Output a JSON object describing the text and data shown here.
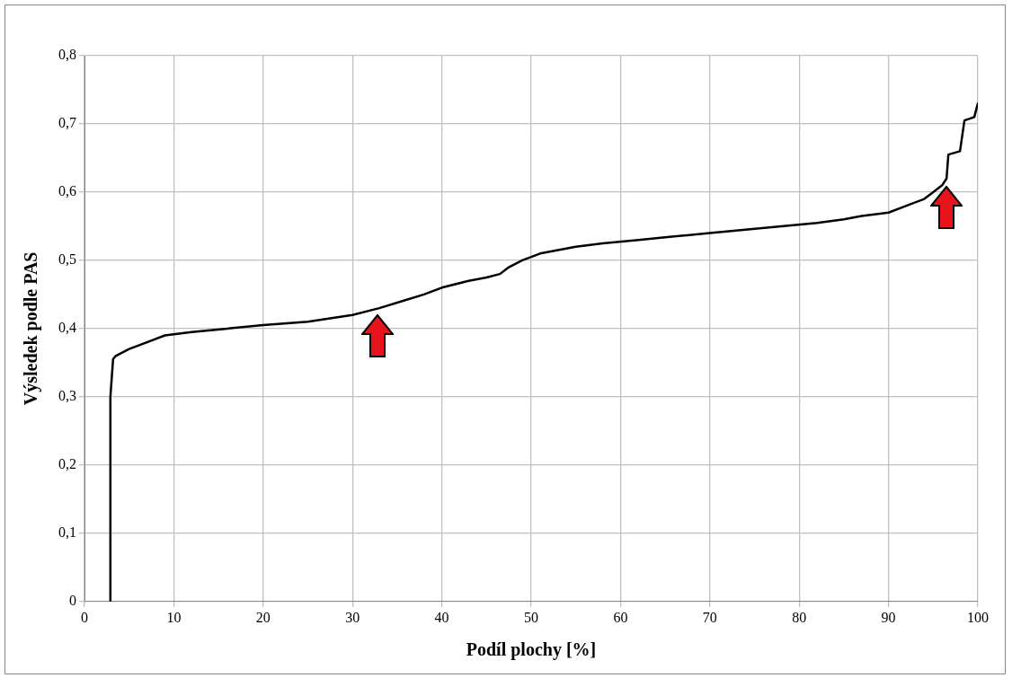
{
  "chart_data": {
    "type": "line",
    "xlabel": "Podíl plochy [%]",
    "ylabel": "Výsledek podle PAS",
    "x": [
      2.9,
      2.9,
      3.2,
      3.5,
      5,
      7,
      9,
      12,
      16,
      20,
      25,
      30,
      33,
      35.5,
      38,
      40,
      43,
      45,
      46.5,
      47.5,
      49,
      51,
      53,
      55,
      58,
      62,
      66,
      70,
      74,
      78,
      82,
      85,
      87,
      90,
      92,
      94,
      95,
      96,
      96.5,
      96.7,
      98,
      98.5,
      99.6,
      100
    ],
    "series": [
      {
        "color": "#000000",
        "values": [
          0,
          0.3,
          0.355,
          0.36,
          0.37,
          0.38,
          0.39,
          0.395,
          0.4,
          0.405,
          0.41,
          0.42,
          0.43,
          0.44,
          0.45,
          0.46,
          0.47,
          0.475,
          0.48,
          0.49,
          0.5,
          0.51,
          0.515,
          0.52,
          0.525,
          0.53,
          0.535,
          0.54,
          0.545,
          0.55,
          0.555,
          0.56,
          0.565,
          0.57,
          0.58,
          0.59,
          0.6,
          0.61,
          0.62,
          0.655,
          0.66,
          0.705,
          0.71,
          0.73
        ]
      }
    ],
    "xlim": [
      0,
      100
    ],
    "xticks": [
      0,
      10,
      20,
      30,
      40,
      50,
      60,
      70,
      80,
      90,
      100
    ],
    "ylim": [
      0,
      0.8
    ],
    "yticks": [
      {
        "value": 0,
        "label": "0"
      },
      {
        "value": 0.1,
        "label": "0,1"
      },
      {
        "value": 0.2,
        "label": "0,2"
      },
      {
        "value": 0.3,
        "label": "0,3"
      },
      {
        "value": 0.4,
        "label": "0,4"
      },
      {
        "value": 0.5,
        "label": "0,5"
      },
      {
        "value": 0.6,
        "label": "0,6"
      },
      {
        "value": 0.7,
        "label": "0,7"
      },
      {
        "value": 0.8,
        "label": "0,8"
      }
    ],
    "grid": true,
    "legend": false,
    "marker": "none",
    "line_style": "solid"
  }
}
